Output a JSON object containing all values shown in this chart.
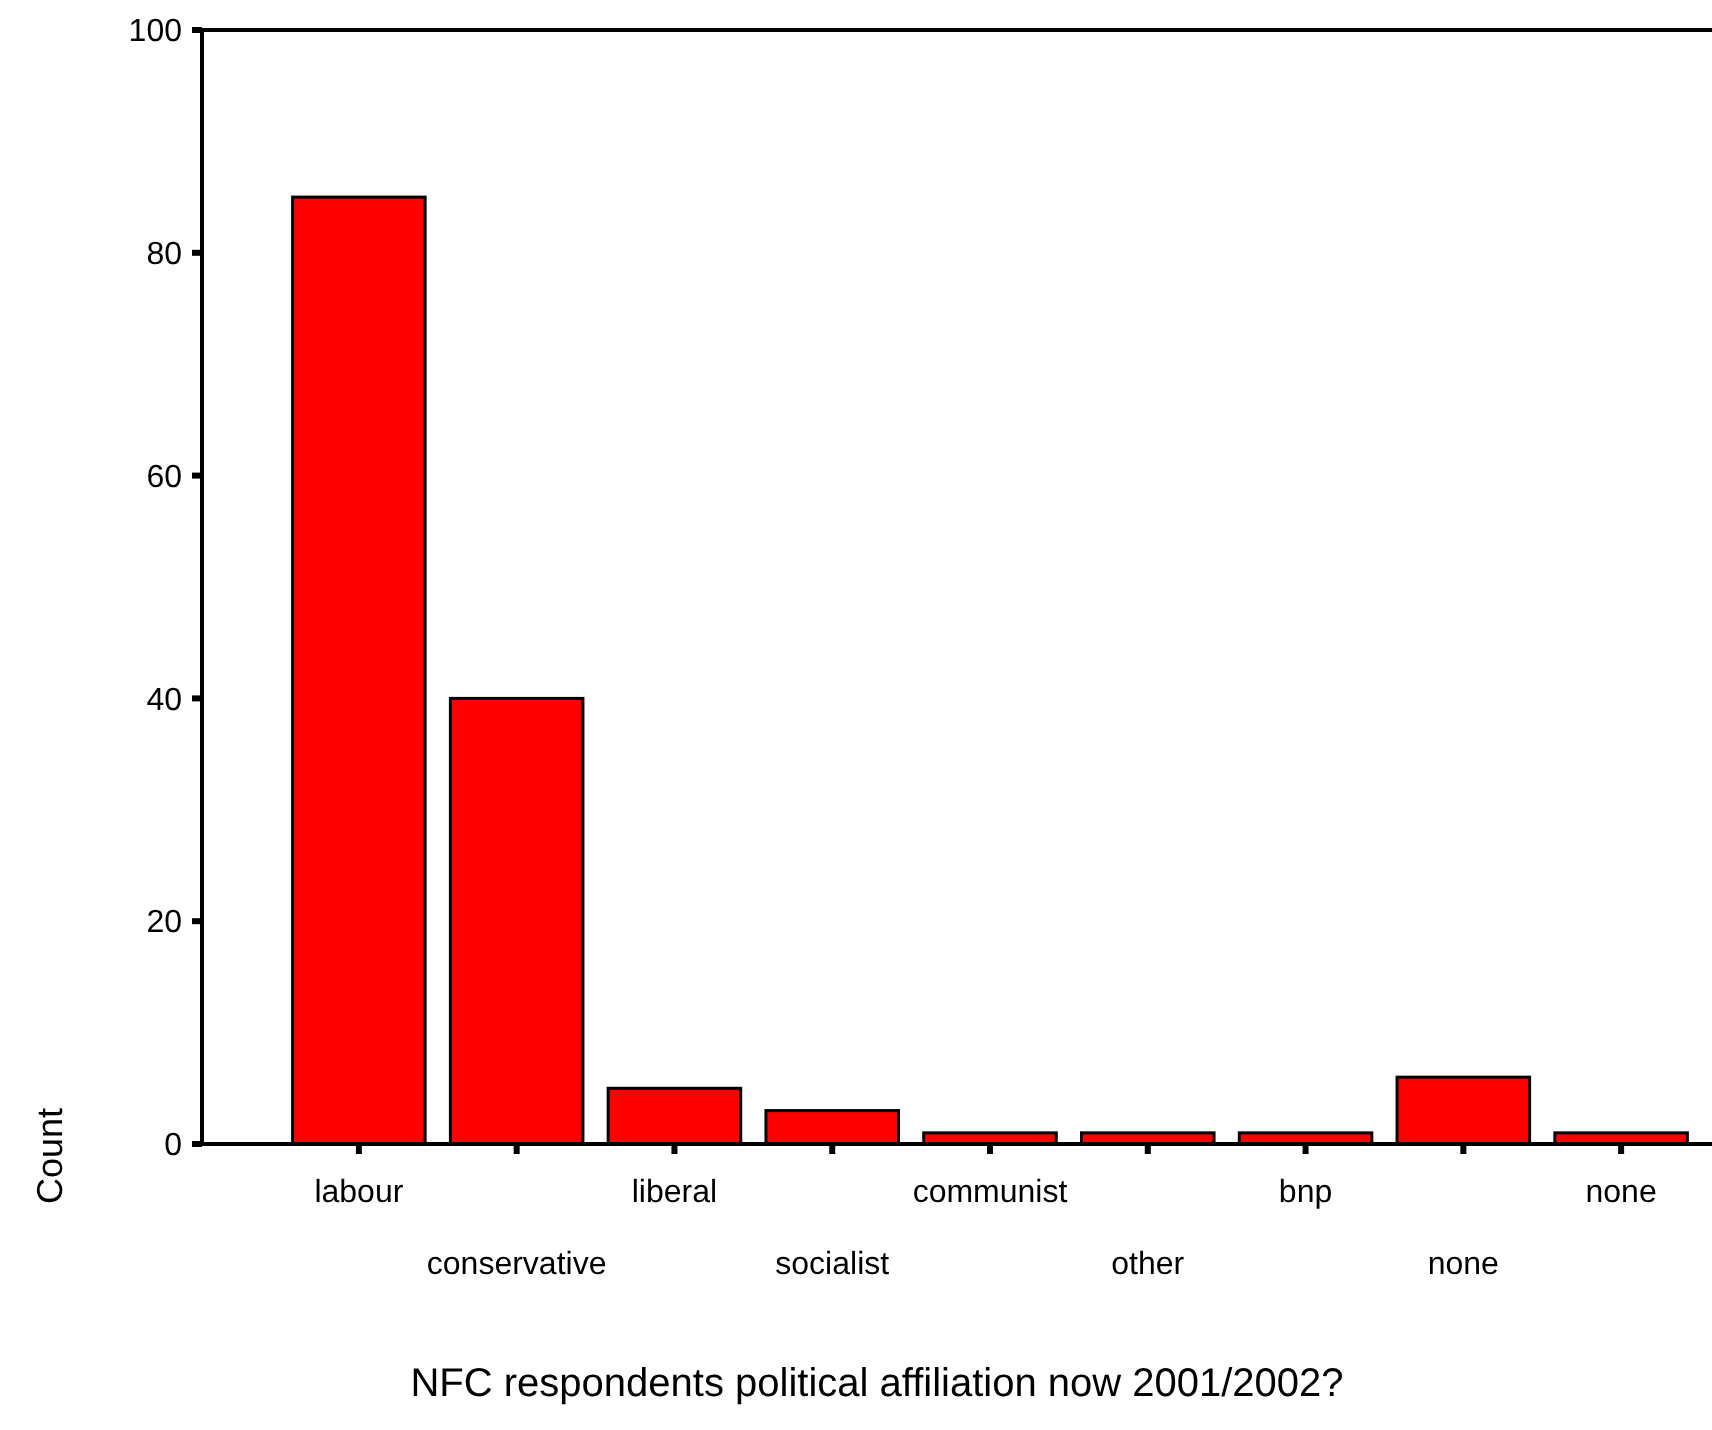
{
  "chart_data": {
    "type": "bar",
    "xlabel": "NFC respondents political affiliation now 2001/2002?",
    "ylabel": "Count",
    "categories": [
      "labour",
      "conservative",
      "liberal",
      "socialist",
      "communist",
      "other",
      "bnp",
      "none",
      "none"
    ],
    "values": [
      85,
      40,
      5,
      3,
      1,
      1,
      1,
      6,
      1
    ],
    "color": "#ff0000",
    "ylim": [
      0,
      100
    ],
    "yticks": [
      0,
      20,
      40,
      60,
      80,
      100
    ],
    "grid": false
  }
}
